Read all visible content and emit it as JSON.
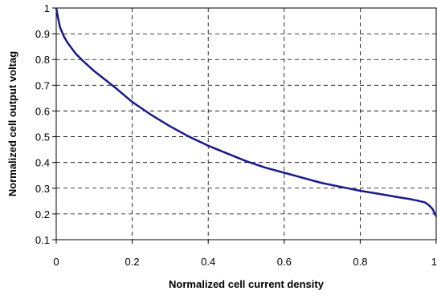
{
  "chart_data": {
    "type": "line",
    "title": "",
    "xlabel": "Normalized cell current density",
    "ylabel": "Normalized cell output voltag",
    "xlim": [
      0,
      1
    ],
    "ylim": [
      0.1,
      1
    ],
    "x_ticks": [
      "0",
      "0.2",
      "0.4",
      "0.6",
      "0.8",
      "1"
    ],
    "y_ticks": [
      "0.1",
      "0.2",
      "0.3",
      "0.4",
      "0.5",
      "0.6",
      "0.7",
      "0.8",
      "0.9",
      "1"
    ],
    "grid": true,
    "grid_style": "dashed",
    "legend": "none",
    "series": [
      {
        "color": "#1a1a8c",
        "x": [
          0.0,
          0.005,
          0.01,
          0.02,
          0.03,
          0.05,
          0.07,
          0.1,
          0.13,
          0.16,
          0.2,
          0.25,
          0.3,
          0.35,
          0.4,
          0.45,
          0.5,
          0.55,
          0.6,
          0.65,
          0.7,
          0.75,
          0.8,
          0.85,
          0.9,
          0.93,
          0.95,
          0.97,
          0.98,
          0.99,
          1.0
        ],
        "y": [
          1.0,
          0.96,
          0.925,
          0.89,
          0.865,
          0.825,
          0.795,
          0.755,
          0.72,
          0.685,
          0.635,
          0.585,
          0.54,
          0.5,
          0.465,
          0.435,
          0.405,
          0.38,
          0.36,
          0.34,
          0.32,
          0.305,
          0.29,
          0.278,
          0.265,
          0.258,
          0.252,
          0.245,
          0.235,
          0.22,
          0.19
        ]
      }
    ]
  }
}
